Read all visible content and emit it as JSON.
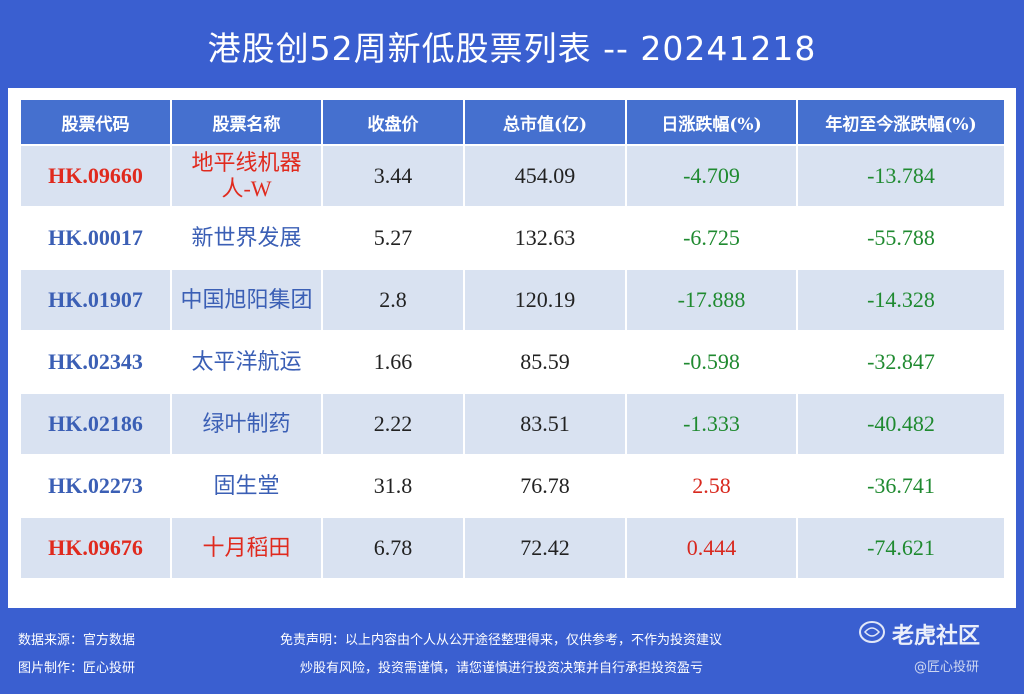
{
  "title": "港股创52周新低股票列表 -- 20241218",
  "table": {
    "headers": [
      "股票代码",
      "股票名称",
      "收盘价",
      "总市值(亿)",
      "日涨跌幅(%)",
      "年初至今涨跌幅(%)"
    ],
    "rows": [
      {
        "code": "HK.09660",
        "name": "地平线机器人-W",
        "close": "3.44",
        "mcap": "454.09",
        "day": "-4.709",
        "ytd": "-13.784"
      },
      {
        "code": "HK.00017",
        "name": "新世界发展",
        "close": "5.27",
        "mcap": "132.63",
        "day": "-6.725",
        "ytd": "-55.788"
      },
      {
        "code": "HK.01907",
        "name": "中国旭阳集团",
        "close": "2.8",
        "mcap": "120.19",
        "day": "-17.888",
        "ytd": "-14.328"
      },
      {
        "code": "HK.02343",
        "name": "太平洋航运",
        "close": "1.66",
        "mcap": "85.59",
        "day": "-0.598",
        "ytd": "-32.847"
      },
      {
        "code": "HK.02186",
        "name": "绿叶制药",
        "close": "2.22",
        "mcap": "83.51",
        "day": "-1.333",
        "ytd": "-40.482"
      },
      {
        "code": "HK.02273",
        "name": "固生堂",
        "close": "31.8",
        "mcap": "76.78",
        "day": "2.58",
        "ytd": "-36.741"
      },
      {
        "code": "HK.09676",
        "name": "十月稻田",
        "close": "6.78",
        "mcap": "72.42",
        "day": "0.444",
        "ytd": "-74.621"
      }
    ]
  },
  "footer": {
    "source": "数据来源：官方数据",
    "maker": "图片制作：匠心投研",
    "disclaimer1": "免责声明：以上内容由个人从公开途径整理得来，仅供参考，不作为投资建议",
    "disclaimer2": "炒股有风险，投资需谨慎，请您谨慎进行投资决策并自行承担投资盈亏"
  },
  "watermark": {
    "brand": "老虎社区",
    "sub": "@匠心投研"
  },
  "colors": {
    "background": "#3a5fd0",
    "header": "#4570cf",
    "row_alt": "#d9e2f1",
    "negative": "#1f8a30",
    "positive": "#d8281e",
    "highlight_code": "#e02a1e"
  }
}
